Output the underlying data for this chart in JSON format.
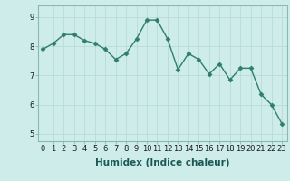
{
  "x": [
    0,
    1,
    2,
    3,
    4,
    5,
    6,
    7,
    8,
    9,
    10,
    11,
    12,
    13,
    14,
    15,
    16,
    17,
    18,
    19,
    20,
    21,
    22,
    23
  ],
  "y": [
    7.9,
    8.1,
    8.4,
    8.4,
    8.2,
    8.1,
    7.9,
    7.55,
    7.75,
    8.25,
    8.9,
    8.9,
    8.25,
    7.2,
    7.75,
    7.55,
    7.05,
    7.4,
    6.85,
    7.25,
    7.25,
    6.35,
    6.0,
    5.35
  ],
  "line_color": "#2e7d6e",
  "marker": "D",
  "marker_size": 2.5,
  "bg_color": "#ceecea",
  "grid_color": "#b8dcd8",
  "xlabel": "Humidex (Indice chaleur)",
  "xlim": [
    -0.5,
    23.5
  ],
  "ylim": [
    4.75,
    9.4
  ],
  "yticks": [
    5,
    6,
    7,
    8,
    9
  ],
  "xticks": [
    0,
    1,
    2,
    3,
    4,
    5,
    6,
    7,
    8,
    9,
    10,
    11,
    12,
    13,
    14,
    15,
    16,
    17,
    18,
    19,
    20,
    21,
    22,
    23
  ],
  "xlabel_fontsize": 7.5,
  "tick_fontsize": 6,
  "line_width": 1.0,
  "spine_color": "#8ab8b4"
}
